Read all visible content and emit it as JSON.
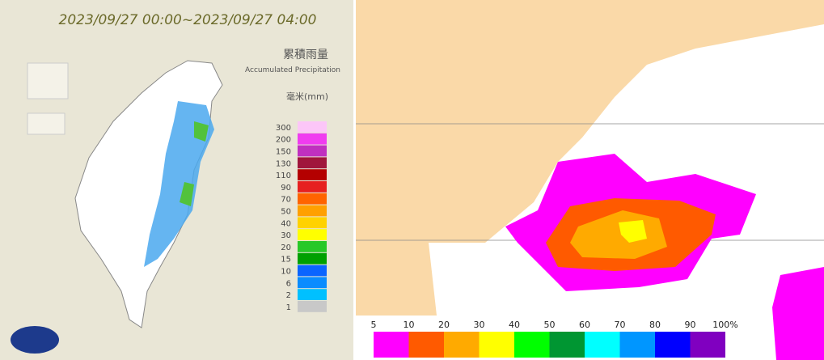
{
  "left_panel": {
    "title": "2023/09/27 00:00~2023/09/27 04:00",
    "legend_title": "累積雨量",
    "legend_subtitle": "Accumulated Precipitation",
    "unit": "毫米(mm)",
    "legend": [
      {
        "label": 300,
        "color": "#fcc6f8"
      },
      {
        "label": 200,
        "color": "#f03cf0"
      },
      {
        "label": 150,
        "color": "#c030c0"
      },
      {
        "label": 130,
        "color": "#a0163c"
      },
      {
        "label": 110,
        "color": "#b40000"
      },
      {
        "label": 90,
        "color": "#e62020"
      },
      {
        "label": 70,
        "color": "#ff6400"
      },
      {
        "label": 50,
        "color": "#ffa000"
      },
      {
        "label": 40,
        "color": "#ffd200"
      },
      {
        "label": 30,
        "color": "#ffff00"
      },
      {
        "label": 20,
        "color": "#28c828"
      },
      {
        "label": 15,
        "color": "#00a000"
      },
      {
        "label": 10,
        "color": "#0a64ff"
      },
      {
        "label": 6,
        "color": "#0a8cff"
      },
      {
        "label": 2,
        "color": "#00c0ff"
      },
      {
        "label": 1,
        "color": "#c8c8c8"
      }
    ]
  },
  "right_panel": {
    "colorbar_labels": [
      5,
      10,
      20,
      30,
      40,
      50,
      60,
      70,
      80,
      90,
      "100%"
    ],
    "colorbar_colors": [
      "#ff00ff",
      "#ff5a00",
      "#ffaa00",
      "#ffff00",
      "#00ff00",
      "#009632",
      "#00ffff",
      "#0096ff",
      "#0000ff",
      "#8000c0"
    ]
  }
}
